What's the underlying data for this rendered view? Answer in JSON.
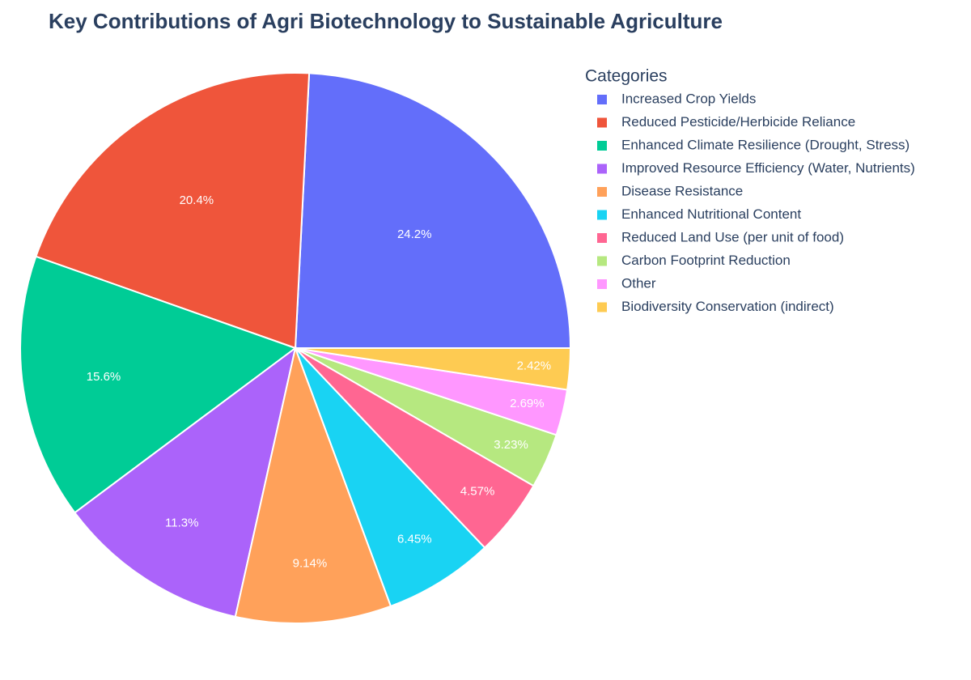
{
  "chart_data": {
    "type": "pie",
    "title": "Key Contributions of Agri Biotechnology to Sustainable Agriculture",
    "legend_title": "Categories",
    "categories": [
      "Increased Crop Yields",
      "Reduced Pesticide/Herbicide Reliance",
      "Enhanced Climate Resilience (Drought, Stress)",
      "Improved Resource Efficiency (Water, Nutrients)",
      "Disease Resistance",
      "Enhanced Nutritional Content",
      "Reduced Land Use (per unit of food)",
      "Carbon Footprint Reduction",
      "Other",
      "Biodiversity Conservation (indirect)"
    ],
    "values": [
      24.2,
      20.4,
      15.6,
      11.3,
      9.14,
      6.45,
      4.57,
      3.23,
      2.69,
      2.42
    ],
    "value_labels": [
      "24.2%",
      "20.4%",
      "15.6%",
      "11.3%",
      "9.14%",
      "6.45%",
      "4.57%",
      "3.23%",
      "2.69%",
      "2.42%"
    ],
    "colors": [
      "#636efa",
      "#EF553B",
      "#00cc96",
      "#ab63fa",
      "#FFA15A",
      "#19d3f3",
      "#FF6692",
      "#B6E880",
      "#FF97FF",
      "#FECB52"
    ],
    "legend": "right"
  }
}
